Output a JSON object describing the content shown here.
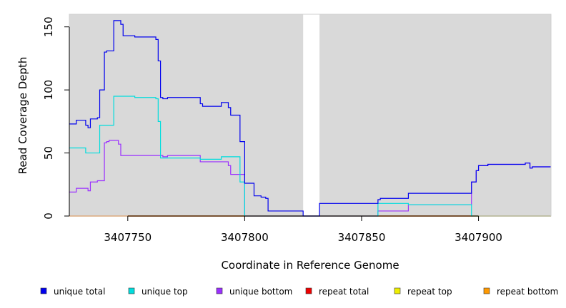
{
  "chart_data": {
    "type": "line",
    "xlabel": "Coordinate in Reference Genome",
    "ylabel": "Read Coverage Depth",
    "xlim": [
      3407725,
      3407931
    ],
    "ylim": [
      0,
      160
    ],
    "x_ticks": [
      3407750,
      3407800,
      3407850,
      3407900
    ],
    "x_tick_labels": [
      "3407750",
      "3407800",
      "3407850",
      "3407900"
    ],
    "y_ticks": [
      0,
      50,
      100,
      150
    ],
    "y_tick_labels": [
      "0",
      "50",
      "100",
      "150"
    ],
    "plot_background": "#d9d9d9",
    "gap_region": [
      3407825,
      3407832
    ],
    "legend_position": "bottom",
    "series": [
      {
        "name": "unique total",
        "color": "#0000ee",
        "points": [
          [
            3407725,
            73
          ],
          [
            3407728,
            73
          ],
          [
            3407728,
            76
          ],
          [
            3407732,
            76
          ],
          [
            3407732,
            72
          ],
          [
            3407733,
            72
          ],
          [
            3407733,
            70
          ],
          [
            3407734,
            70
          ],
          [
            3407734,
            77
          ],
          [
            3407737,
            77
          ],
          [
            3407737,
            78
          ],
          [
            3407738,
            78
          ],
          [
            3407738,
            100
          ],
          [
            3407740,
            100
          ],
          [
            3407740,
            130
          ],
          [
            3407741,
            130
          ],
          [
            3407741,
            131
          ],
          [
            3407744,
            131
          ],
          [
            3407744,
            155
          ],
          [
            3407747,
            155
          ],
          [
            3407747,
            152
          ],
          [
            3407748,
            152
          ],
          [
            3407748,
            143
          ],
          [
            3407753,
            143
          ],
          [
            3407753,
            142
          ],
          [
            3407762,
            142
          ],
          [
            3407762,
            140
          ],
          [
            3407763,
            140
          ],
          [
            3407763,
            123
          ],
          [
            3407764,
            123
          ],
          [
            3407764,
            94
          ],
          [
            3407765,
            94
          ],
          [
            3407765,
            93
          ],
          [
            3407767,
            93
          ],
          [
            3407767,
            94
          ],
          [
            3407781,
            94
          ],
          [
            3407781,
            89
          ],
          [
            3407782,
            89
          ],
          [
            3407782,
            87
          ],
          [
            3407790,
            87
          ],
          [
            3407790,
            90
          ],
          [
            3407793,
            90
          ],
          [
            3407793,
            86
          ],
          [
            3407794,
            86
          ],
          [
            3407794,
            80
          ],
          [
            3407798,
            80
          ],
          [
            3407798,
            59
          ],
          [
            3407800,
            59
          ],
          [
            3407800,
            26
          ],
          [
            3407804,
            26
          ],
          [
            3407804,
            16
          ],
          [
            3407807,
            16
          ],
          [
            3407807,
            15
          ],
          [
            3407809,
            15
          ],
          [
            3407809,
            14
          ],
          [
            3407810,
            14
          ],
          [
            3407810,
            4
          ],
          [
            3407825,
            4
          ],
          [
            3407825,
            0
          ],
          [
            3407832,
            0
          ],
          [
            3407832,
            10
          ],
          [
            3407857,
            10
          ],
          [
            3407857,
            13
          ],
          [
            3407858,
            13
          ],
          [
            3407858,
            14
          ],
          [
            3407870,
            14
          ],
          [
            3407870,
            18
          ],
          [
            3407897,
            18
          ],
          [
            3407897,
            27
          ],
          [
            3407899,
            27
          ],
          [
            3407899,
            36
          ],
          [
            3407900,
            36
          ],
          [
            3407900,
            40
          ],
          [
            3407904,
            40
          ],
          [
            3407904,
            41
          ],
          [
            3407920,
            41
          ],
          [
            3407920,
            42
          ],
          [
            3407922,
            42
          ],
          [
            3407922,
            38
          ],
          [
            3407923,
            38
          ],
          [
            3407923,
            39
          ],
          [
            3407931,
            39
          ]
        ]
      },
      {
        "name": "unique top",
        "color": "#00dddd",
        "points": [
          [
            3407725,
            54
          ],
          [
            3407732,
            54
          ],
          [
            3407732,
            50
          ],
          [
            3407738,
            50
          ],
          [
            3407738,
            72
          ],
          [
            3407744,
            72
          ],
          [
            3407744,
            95
          ],
          [
            3407753,
            95
          ],
          [
            3407753,
            94
          ],
          [
            3407762,
            94
          ],
          [
            3407762,
            93
          ],
          [
            3407763,
            93
          ],
          [
            3407763,
            75
          ],
          [
            3407764,
            75
          ],
          [
            3407764,
            46
          ],
          [
            3407781,
            46
          ],
          [
            3407781,
            45
          ],
          [
            3407790,
            45
          ],
          [
            3407790,
            47
          ],
          [
            3407798,
            47
          ],
          [
            3407798,
            27
          ],
          [
            3407800,
            27
          ],
          [
            3407800,
            0
          ],
          [
            3407857,
            0
          ],
          [
            3407857,
            10
          ],
          [
            3407870,
            10
          ],
          [
            3407870,
            9
          ],
          [
            3407897,
            9
          ],
          [
            3407897,
            0
          ],
          [
            3407931,
            0
          ]
        ]
      },
      {
        "name": "unique bottom",
        "color": "#9b30ff",
        "points": [
          [
            3407725,
            19
          ],
          [
            3407728,
            19
          ],
          [
            3407728,
            22
          ],
          [
            3407733,
            22
          ],
          [
            3407733,
            20
          ],
          [
            3407734,
            20
          ],
          [
            3407734,
            27
          ],
          [
            3407737,
            27
          ],
          [
            3407737,
            28
          ],
          [
            3407740,
            28
          ],
          [
            3407740,
            58
          ],
          [
            3407741,
            58
          ],
          [
            3407741,
            59
          ],
          [
            3407742,
            59
          ],
          [
            3407742,
            60
          ],
          [
            3407746,
            60
          ],
          [
            3407746,
            57
          ],
          [
            3407747,
            57
          ],
          [
            3407747,
            48
          ],
          [
            3407765,
            48
          ],
          [
            3407765,
            47
          ],
          [
            3407767,
            47
          ],
          [
            3407767,
            48
          ],
          [
            3407781,
            48
          ],
          [
            3407781,
            43
          ],
          [
            3407793,
            43
          ],
          [
            3407793,
            40
          ],
          [
            3407794,
            40
          ],
          [
            3407794,
            33
          ],
          [
            3407800,
            33
          ],
          [
            3407800,
            0
          ],
          [
            3407857,
            0
          ],
          [
            3407857,
            4
          ],
          [
            3407870,
            4
          ],
          [
            3407870,
            9
          ],
          [
            3407897,
            9
          ],
          [
            3407897,
            27
          ],
          [
            3407899,
            27
          ],
          [
            3407899,
            36
          ],
          [
            3407900,
            36
          ],
          [
            3407900,
            40
          ],
          [
            3407904,
            40
          ],
          [
            3407904,
            41
          ],
          [
            3407920,
            41
          ],
          [
            3407920,
            42
          ],
          [
            3407922,
            42
          ],
          [
            3407922,
            38
          ],
          [
            3407923,
            38
          ],
          [
            3407923,
            39
          ],
          [
            3407931,
            39
          ]
        ]
      },
      {
        "name": "repeat total",
        "color": "#ee0000",
        "points": [
          [
            3407725,
            0
          ],
          [
            3407931,
            0
          ]
        ]
      },
      {
        "name": "repeat top",
        "color": "#eeee00",
        "points": [
          [
            3407725,
            0
          ],
          [
            3407931,
            0
          ]
        ]
      },
      {
        "name": "repeat bottom",
        "color": "#ff9900",
        "points": [
          [
            3407725,
            0
          ],
          [
            3407931,
            0
          ]
        ]
      }
    ]
  }
}
